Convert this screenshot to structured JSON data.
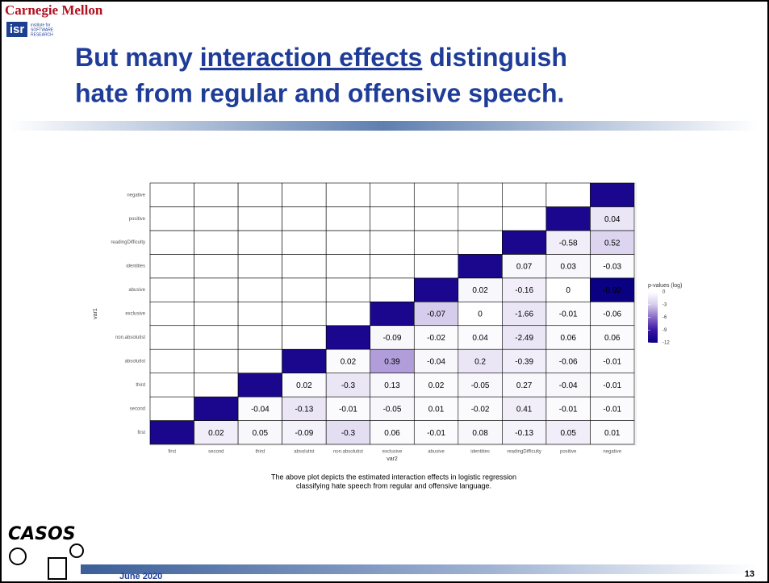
{
  "header": {
    "brand": "Carnegie Mellon",
    "logo": "isr",
    "logo_sub": [
      "institute for",
      "SOFTWARE",
      "RESEARCH"
    ]
  },
  "title": {
    "line1_pre": "But many ",
    "line1_underlined": "interaction effects",
    "line1_post": " distinguish",
    "line2": "hate from regular and offensive speech."
  },
  "footer": {
    "casos": "CASOS",
    "date": "June 2020",
    "page": "13"
  },
  "chart_data": {
    "type": "heatmap",
    "x_label": "var2",
    "y_label": "var1",
    "categories": [
      "first",
      "second",
      "third",
      "absolutist",
      "non.absolutist",
      "exclusive",
      "abusive",
      "identities",
      "readingDifficulty",
      "positive",
      "negative"
    ],
    "values": [
      [
        null,
        0.02,
        0.05,
        -0.09,
        -0.3,
        0.06,
        -0.01,
        0.08,
        -0.13,
        0.05,
        0.01
      ],
      [
        null,
        null,
        -0.04,
        -0.13,
        -0.01,
        -0.05,
        0.01,
        -0.02,
        0.41,
        -0.01,
        -0.01
      ],
      [
        null,
        null,
        null,
        0.02,
        -0.3,
        0.13,
        0.02,
        -0.05,
        0.27,
        -0.04,
        -0.01
      ],
      [
        null,
        null,
        null,
        null,
        0.02,
        0.39,
        -0.04,
        0.2,
        -0.39,
        -0.06,
        -0.01
      ],
      [
        null,
        null,
        null,
        null,
        null,
        -0.09,
        -0.02,
        0.04,
        -2.49,
        0.06,
        0.06
      ],
      [
        null,
        null,
        null,
        null,
        null,
        null,
        -0.07,
        0,
        -1.66,
        -0.01,
        -0.06
      ],
      [
        null,
        null,
        null,
        null,
        null,
        null,
        null,
        0.02,
        -0.16,
        0,
        -0.92
      ],
      [
        null,
        null,
        null,
        null,
        null,
        null,
        null,
        null,
        0.07,
        0.03,
        -0.03
      ],
      [
        null,
        null,
        null,
        null,
        null,
        null,
        null,
        null,
        null,
        -0.58,
        0.52
      ],
      [
        null,
        null,
        null,
        null,
        null,
        null,
        null,
        null,
        null,
        null,
        0.04
      ],
      [
        null,
        null,
        null,
        null,
        null,
        null,
        null,
        null,
        null,
        null,
        null
      ]
    ],
    "pvalues": [
      [
        -11,
        -1,
        -0.5,
        -0.8,
        -2,
        -0.3,
        -0.3,
        -0.5,
        -0.8,
        -1,
        -0.3
      ],
      [
        null,
        -11,
        -0.3,
        -1.5,
        -0.3,
        -0.5,
        -0.3,
        -0.3,
        -1,
        -0.3,
        -0.3
      ],
      [
        null,
        null,
        -11,
        -0.3,
        -1.5,
        -0.5,
        -0.3,
        -0.5,
        -0.5,
        -0.5,
        -0.3
      ],
      [
        null,
        null,
        null,
        -11,
        -0.3,
        -4.5,
        -0.5,
        -1.5,
        -1,
        -0.5,
        -0.3
      ],
      [
        null,
        null,
        null,
        null,
        -11,
        -0.5,
        -0.3,
        -0.3,
        -1.5,
        -0.3,
        -0.3
      ],
      [
        null,
        null,
        null,
        null,
        null,
        -11,
        -3,
        0,
        -1.5,
        -0.3,
        -0.3
      ],
      [
        null,
        null,
        null,
        null,
        null,
        null,
        -11,
        -0.5,
        -1,
        0,
        -12
      ],
      [
        null,
        null,
        null,
        null,
        null,
        null,
        null,
        -11,
        -0.5,
        -0.5,
        -0.3
      ],
      [
        null,
        null,
        null,
        null,
        null,
        null,
        null,
        null,
        -11,
        -1,
        -2.5
      ],
      [
        null,
        null,
        null,
        null,
        null,
        null,
        null,
        null,
        null,
        -11,
        -1.5
      ],
      [
        null,
        null,
        null,
        null,
        null,
        null,
        null,
        null,
        null,
        null,
        -11
      ]
    ],
    "colorbar_title": "p-values (log)",
    "clim": [
      0,
      -12
    ],
    "cticks": [
      0,
      -3,
      -6,
      -9,
      -12
    ],
    "colorscale": [
      "#ffffff",
      "#d6cdec",
      "#8a6cc6",
      "#3a16a4",
      "#0a0082"
    ],
    "caption": [
      "The above plot depicts the estimated interaction effects in logistic regression",
      "classifying hate speech from regular and offensive language."
    ]
  }
}
